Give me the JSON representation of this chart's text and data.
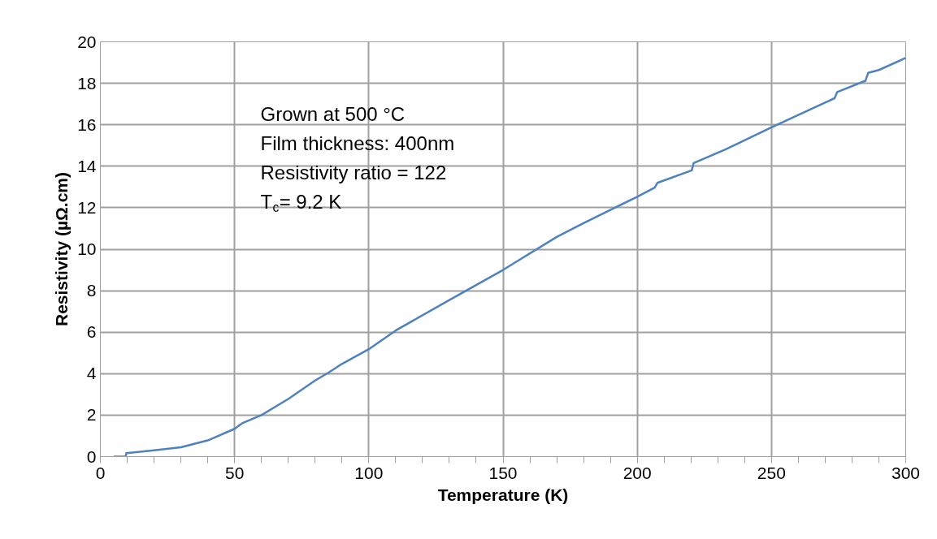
{
  "chart_data": {
    "type": "line",
    "xlabel": "Temperature (K)",
    "ylabel": "Resistivity (µΩ.cm)",
    "annotations": [
      "Grown at 500 °C",
      "Film thickness: 400nm",
      "Resistivity ratio = 122",
      "T$_{c}$= 9.2 K"
    ],
    "x": [
      5,
      9.4,
      9.7,
      20,
      30,
      40,
      50,
      53,
      60,
      70,
      80,
      85,
      90,
      100,
      110,
      130,
      150,
      170,
      180,
      200,
      206.5,
      207.5,
      220.3,
      221,
      233,
      250,
      273.5,
      274.5,
      285,
      286,
      290,
      300
    ],
    "series": [
      {
        "color": "#4f81bd",
        "values": [
          0.0,
          0.0,
          0.17,
          0.3,
          0.45,
          0.78,
          1.34,
          1.62,
          2.0,
          2.78,
          3.67,
          4.05,
          4.47,
          5.18,
          6.08,
          7.55,
          9.0,
          10.59,
          11.26,
          12.53,
          12.97,
          13.2,
          13.8,
          14.15,
          14.82,
          15.88,
          17.28,
          17.58,
          18.12,
          18.5,
          18.64,
          19.22
        ]
      }
    ],
    "xlim": [
      0,
      300
    ],
    "xticks": [
      0,
      50,
      100,
      150,
      200,
      250,
      300
    ],
    "ylim": [
      0,
      20
    ],
    "yticks": [
      0,
      2,
      4,
      6,
      8,
      10,
      12,
      14,
      16,
      18,
      20
    ],
    "grid": true,
    "marker": "none",
    "line_style": "solid"
  }
}
